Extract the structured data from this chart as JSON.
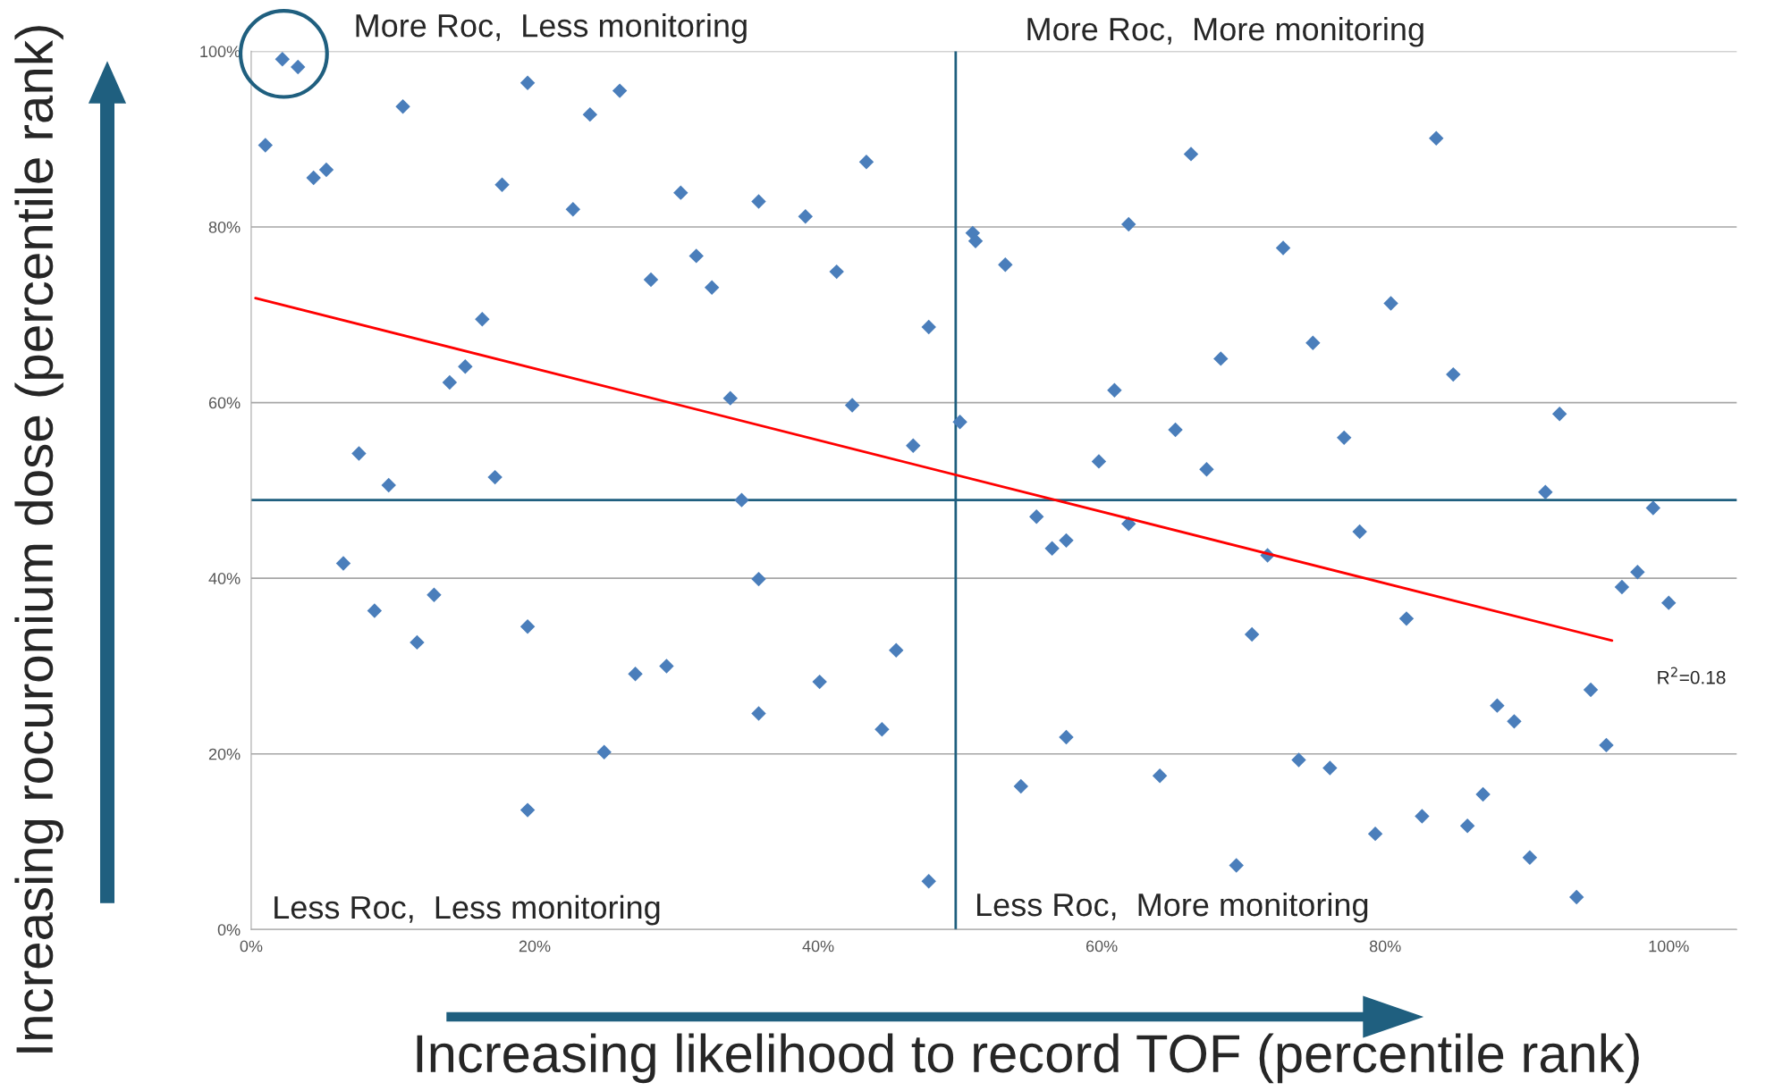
{
  "chart_data": {
    "type": "scatter",
    "xlabel": "Increasing likelihood to record TOF (percentile rank)",
    "ylabel": "Increasing rocuronium dose (percentile rank)",
    "annotations": [
      "More Roc,  Less monitoring",
      "More Roc,  More monitoring",
      "Less Roc,  Less monitoring",
      "Less Roc,  More monitoring",
      "R$^{2}$=0.18"
    ],
    "series": [
      {
        "color": "#4a7ebb",
        "marker": "diamond",
        "x": [
          2.2,
          3.3,
          1.0,
          4.4,
          5.3,
          10.7,
          19.5,
          17.7,
          22.7,
          23.9,
          26.0,
          28.2,
          30.3,
          31.4,
          32.5,
          35.8,
          39.1,
          41.3,
          43.4,
          47.8,
          33.8,
          42.4,
          16.3,
          15.1,
          14.0,
          7.6,
          9.7,
          17.2,
          6.5,
          8.7,
          12.9,
          11.7,
          19.5,
          19.5,
          24.9,
          27.1,
          29.3,
          34.6,
          35.8,
          35.8,
          40.1,
          44.5,
          45.5,
          46.7,
          47.8,
          50.0,
          50.9,
          51.1,
          53.2,
          54.3,
          55.4,
          56.5,
          57.5,
          57.5,
          59.8,
          60.9,
          61.9,
          61.9,
          64.1,
          65.2,
          66.3,
          67.4,
          68.4,
          69.5,
          70.6,
          71.7,
          72.8,
          73.9,
          74.9,
          76.1,
          77.1,
          78.2,
          79.3,
          80.4,
          81.5,
          82.6,
          83.6,
          84.8,
          85.8,
          86.9,
          87.9,
          89.1,
          90.2,
          91.3,
          92.3,
          93.5,
          94.5,
          95.6,
          96.7,
          97.8,
          98.9,
          100.0
        ],
        "values": [
          99.1,
          98.2,
          89.3,
          85.6,
          86.5,
          93.7,
          96.4,
          84.8,
          82.0,
          92.8,
          95.5,
          74.0,
          83.9,
          76.7,
          73.1,
          82.9,
          81.2,
          74.9,
          87.4,
          68.6,
          60.5,
          59.7,
          69.5,
          64.1,
          62.3,
          54.2,
          50.6,
          51.5,
          41.7,
          36.3,
          38.1,
          32.7,
          34.5,
          13.6,
          20.2,
          29.1,
          30.0,
          48.9,
          39.9,
          24.6,
          28.2,
          22.8,
          31.8,
          55.1,
          5.5,
          57.8,
          79.3,
          78.4,
          75.7,
          16.3,
          47.0,
          43.4,
          44.3,
          21.9,
          53.3,
          61.4,
          46.2,
          80.3,
          17.5,
          56.9,
          88.3,
          52.4,
          65.0,
          7.3,
          33.6,
          42.6,
          77.6,
          19.3,
          66.8,
          18.4,
          56.0,
          45.3,
          10.9,
          71.3,
          35.4,
          12.9,
          90.1,
          63.2,
          11.8,
          15.4,
          25.5,
          23.7,
          8.2,
          49.8,
          58.7,
          3.7,
          27.3,
          21.0,
          39.0,
          40.7,
          48.0,
          37.2
        ]
      },
      {
        "type": "line",
        "color": "#ff0000",
        "x": [
          0.3,
          96.0
        ],
        "values": [
          71.9,
          32.9
        ]
      }
    ],
    "xlim": [
      0,
      104.8
    ],
    "ylim": [
      0,
      100
    ],
    "xticks": [
      {
        "value": 0,
        "label": "0%"
      },
      {
        "value": 20,
        "label": "20%"
      },
      {
        "value": 40,
        "label": "40%"
      },
      {
        "value": 60,
        "label": "60%"
      },
      {
        "value": 80,
        "label": "80%"
      },
      {
        "value": 100,
        "label": "100%"
      }
    ],
    "yticks": [
      {
        "value": 0,
        "label": "0%"
      },
      {
        "value": 20,
        "label": "20%"
      },
      {
        "value": 40,
        "label": "40%"
      },
      {
        "value": 60,
        "label": "60%"
      },
      {
        "value": 80,
        "label": "80%"
      },
      {
        "value": 100,
        "label": "100%"
      }
    ],
    "ref_lines": [
      {
        "axis": "x",
        "value": 49.7,
        "color": "#1f5f7f"
      },
      {
        "axis": "y",
        "value": 48.9,
        "color": "#1f5f7f"
      }
    ],
    "grid": "y",
    "legend": false
  }
}
